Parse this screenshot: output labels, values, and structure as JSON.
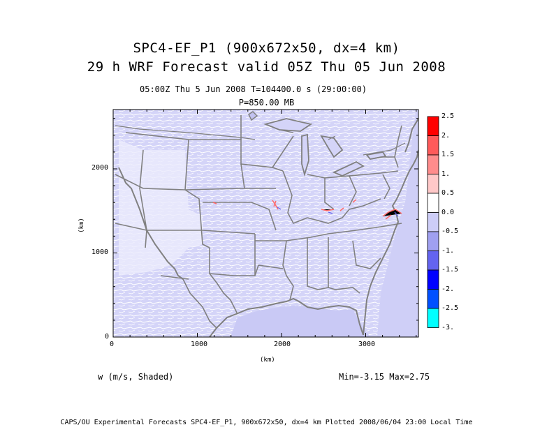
{
  "title": "SPC4-EF_P1 (900x672x50, dx=4 km)",
  "subtitle": "29 h WRF Forecast valid 05Z Thu 05 Jun 2008",
  "time_line": "05:00Z Thu  5 Jun 2008    T=104400.0 s (29:00:00)",
  "pressure_line": "P=850.00 MB",
  "field_label": "w (m/s, Shaded)",
  "minmax": "Min=-3.15 Max=2.75",
  "footer": "CAPS/OU Experimental Forecasts  SPC4-EF_P1, 900x672x50, dx=4 km  Plotted 2008/06/04 23:00 Local Time",
  "axes": {
    "xlabel": "(km)",
    "ylabel": "(km)",
    "xticks": [
      "0",
      "1000",
      "2000",
      "3000"
    ],
    "yticks": [
      "0",
      "1000",
      "2000"
    ]
  },
  "colorbar": {
    "labels": [
      "2.5",
      "2.",
      "1.5",
      "1.",
      "0.5",
      "0.0",
      "-0.5",
      "-1.",
      "-1.5",
      "-2.",
      "-2.5",
      "-3."
    ],
    "colors": [
      "#ff0000",
      "#ff5a5a",
      "#ff8c8c",
      "#ffc8c8",
      "#ffffff",
      "#cdcdf7",
      "#a0a0f0",
      "#6464f0",
      "#0000ff",
      "#0050ff",
      "#00ffff"
    ]
  },
  "map_colors": {
    "background": "#d2d2f8",
    "lines": "#808080"
  }
}
